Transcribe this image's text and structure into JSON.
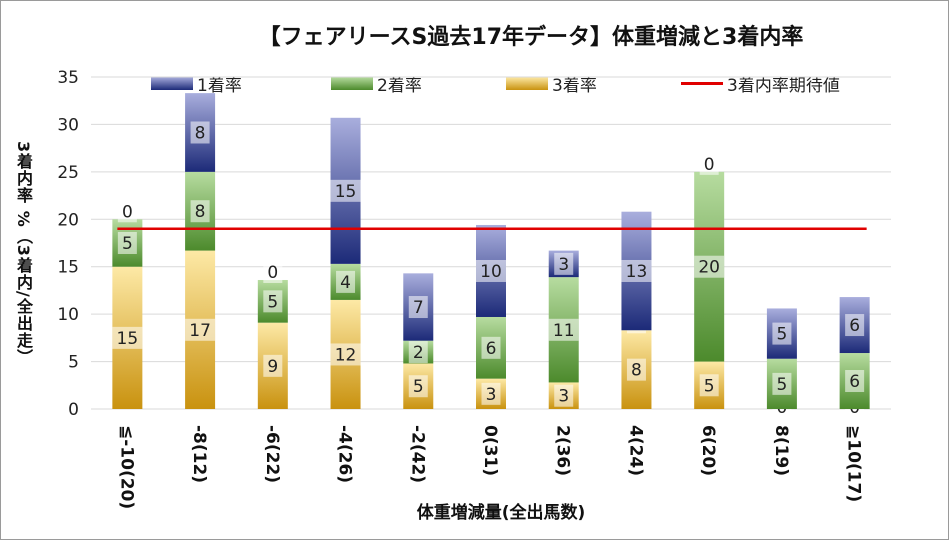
{
  "chart_data": {
    "type": "bar",
    "stacked": true,
    "title": "【フェアリースS過去17年データ】体重増減と3着内率",
    "xlabel": "体重増減量(全出馬数)",
    "ylabel": "3着内率 %（3着内/全出走）",
    "ylim": [
      0,
      35
    ],
    "yticks": [
      0,
      5,
      10,
      15,
      20,
      25,
      30,
      35
    ],
    "grid": true,
    "legend_position": "top",
    "categories": [
      "≦-10(20)",
      "-8(12)",
      "-6(22)",
      "-4(26)",
      "-2(42)",
      "0(31)",
      "2(36)",
      "4(24)",
      "6(20)",
      "8(19)",
      "≧10(17)"
    ],
    "series": [
      {
        "name": "3着率",
        "values": [
          15,
          16.7,
          9.1,
          11.5,
          4.8,
          3.2,
          2.8,
          8.3,
          5,
          0,
          0
        ],
        "labels": [
          "15",
          "17",
          "9",
          "12",
          "5",
          "3",
          "3",
          "8",
          "5",
          "0",
          "0"
        ]
      },
      {
        "name": "2着率",
        "values": [
          5,
          8.3,
          4.5,
          3.8,
          2.4,
          6.5,
          11.1,
          0,
          20,
          5.3,
          5.9
        ],
        "labels": [
          "5",
          "8",
          "5",
          "4",
          "2",
          "6",
          "11",
          "0",
          "20",
          "5",
          "6"
        ]
      },
      {
        "name": "1着率",
        "values": [
          0,
          8.3,
          0,
          15.4,
          7.1,
          9.7,
          2.8,
          12.5,
          0,
          5.3,
          5.9
        ],
        "labels": [
          "0",
          "8",
          "0",
          "15",
          "7",
          "10",
          "3",
          "13",
          "0",
          "5",
          "6"
        ]
      }
    ],
    "reference_line": {
      "name": "3着内率期待値",
      "value": 19
    },
    "legend": [
      "1着率",
      "2着率",
      "3着率",
      "3着内率期待値"
    ],
    "colors": {
      "s1_light": "#a9aedd",
      "s1_dark": "#1c2a78",
      "s2_light": "#b7dca0",
      "s2_dark": "#4c8a2c",
      "s3_light": "#fde9a6",
      "s3_dark": "#c9920f",
      "ref": "#e00000",
      "grid": "#d9d9d9",
      "text": "#222222"
    }
  }
}
